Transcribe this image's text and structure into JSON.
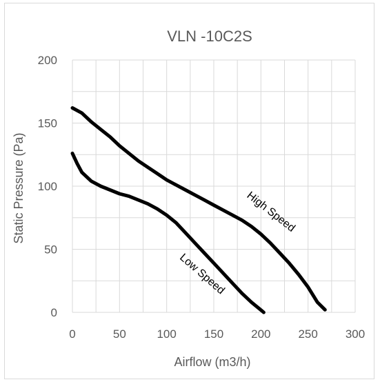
{
  "chart_data": {
    "type": "line",
    "title": "VLN -10C2S",
    "xlabel": "Airflow (m3/h)",
    "ylabel": "Static Pressure (Pa)",
    "xlim": [
      0,
      300
    ],
    "ylim": [
      0,
      200
    ],
    "x_ticks": [
      0,
      50,
      100,
      150,
      200,
      250,
      300
    ],
    "y_ticks": [
      0,
      50,
      100,
      150,
      200
    ],
    "grid": "on",
    "series": [
      {
        "name": "High Speed",
        "color": "#000000",
        "points": [
          [
            0,
            162
          ],
          [
            10,
            158
          ],
          [
            20,
            151
          ],
          [
            30,
            145
          ],
          [
            40,
            139
          ],
          [
            50,
            132
          ],
          [
            60,
            126
          ],
          [
            70,
            120
          ],
          [
            80,
            115
          ],
          [
            90,
            110
          ],
          [
            100,
            105
          ],
          [
            110,
            101
          ],
          [
            120,
            97
          ],
          [
            130,
            93
          ],
          [
            140,
            89
          ],
          [
            150,
            85
          ],
          [
            160,
            81
          ],
          [
            170,
            77
          ],
          [
            180,
            73
          ],
          [
            190,
            68
          ],
          [
            200,
            62
          ],
          [
            210,
            55
          ],
          [
            220,
            47
          ],
          [
            230,
            39
          ],
          [
            240,
            30
          ],
          [
            250,
            20
          ],
          [
            260,
            8
          ],
          [
            268,
            2
          ]
        ]
      },
      {
        "name": "Low Speed",
        "color": "#000000",
        "points": [
          [
            0,
            126
          ],
          [
            5,
            118
          ],
          [
            10,
            111
          ],
          [
            20,
            104
          ],
          [
            30,
            100
          ],
          [
            40,
            97
          ],
          [
            50,
            94
          ],
          [
            60,
            92
          ],
          [
            70,
            89
          ],
          [
            80,
            86
          ],
          [
            90,
            82
          ],
          [
            100,
            77
          ],
          [
            110,
            71
          ],
          [
            120,
            63
          ],
          [
            130,
            55
          ],
          [
            140,
            47
          ],
          [
            150,
            39
          ],
          [
            160,
            31
          ],
          [
            170,
            23
          ],
          [
            180,
            15
          ],
          [
            190,
            8
          ],
          [
            203,
            0
          ]
        ]
      }
    ]
  }
}
